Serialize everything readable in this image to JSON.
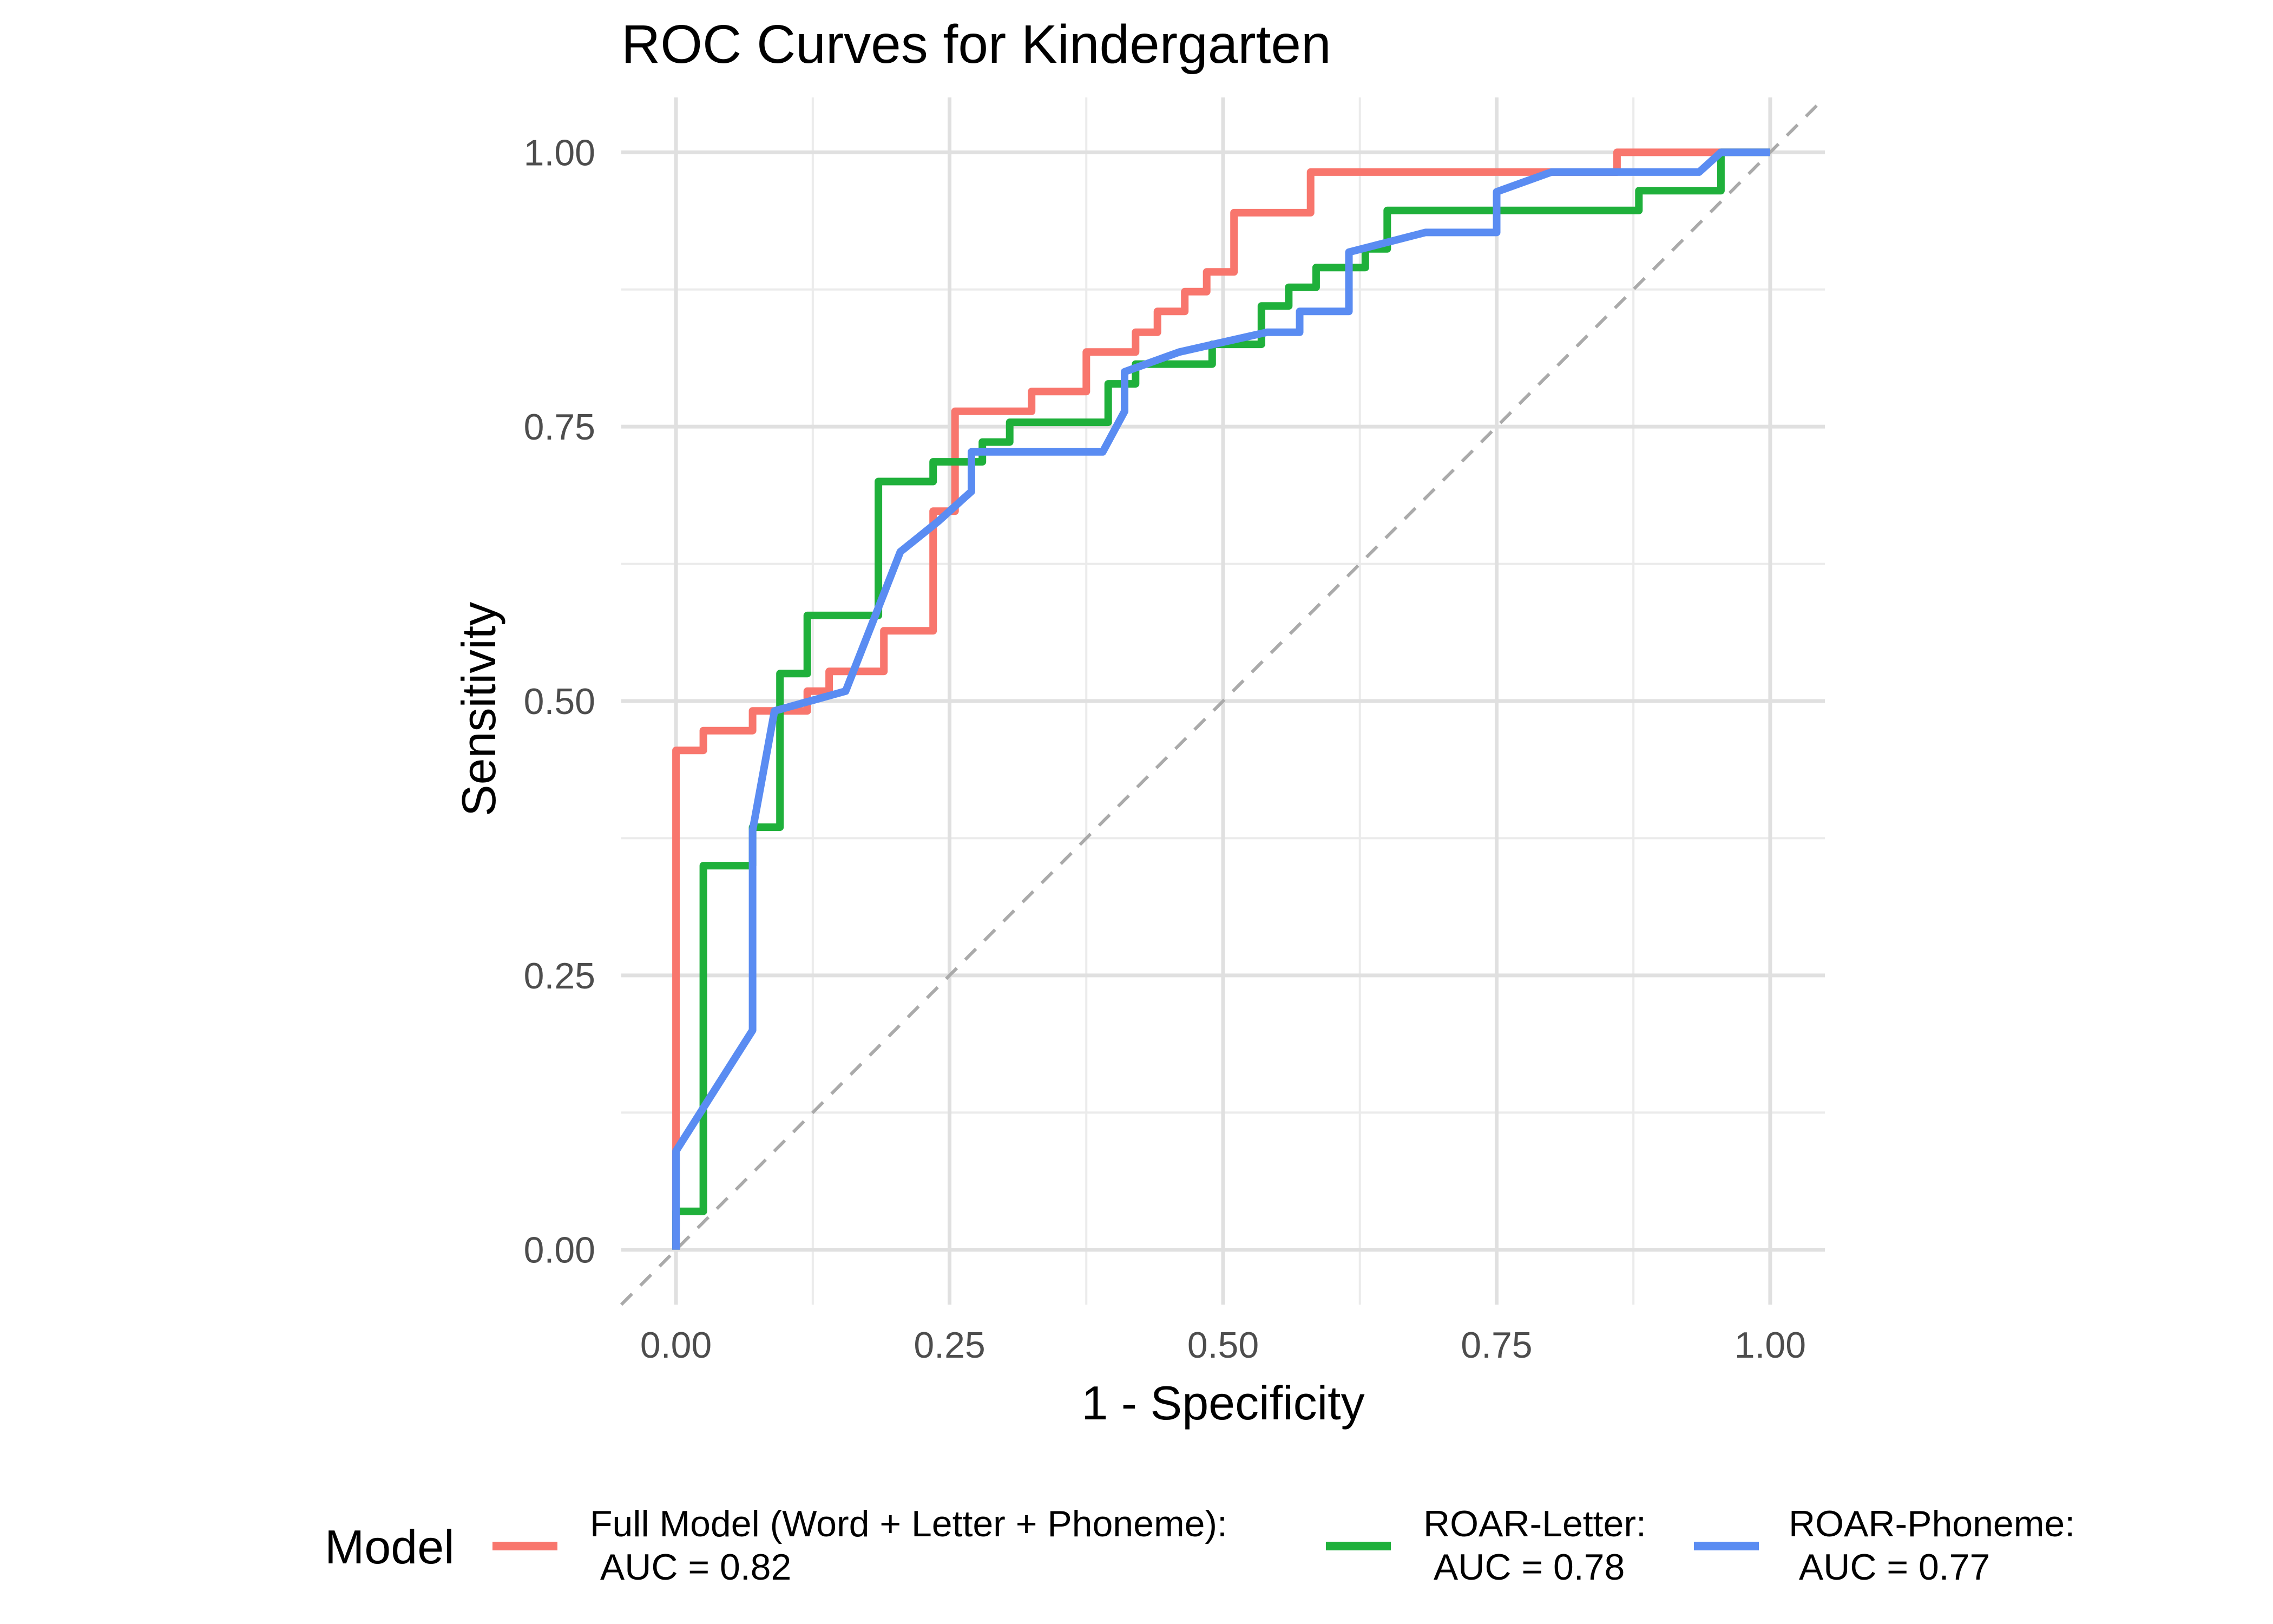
{
  "chart_data": {
    "type": "line",
    "title": "ROC Curves for Kindergarten",
    "xlabel": "1 - Specificity",
    "ylabel": "Sensitivity",
    "xlim": [
      -0.05,
      1.05
    ],
    "ylim": [
      -0.05,
      1.05
    ],
    "xticks": [
      "0.00",
      "0.25",
      "0.50",
      "0.75",
      "1.00"
    ],
    "yticks": [
      "0.00",
      "0.25",
      "0.50",
      "0.75",
      "1.00"
    ],
    "grid": true,
    "legend_position": "bottom",
    "legend_title": "Model",
    "reference_line": {
      "style": "dashed",
      "color": "#aaaaaa",
      "from": [
        -0.05,
        -0.05
      ],
      "to": [
        1.05,
        1.05
      ]
    },
    "series": [
      {
        "name": "Full Model (Word + Letter + Phoneme):\n AUC = 0.82",
        "color": "#F8766D",
        "points": [
          [
            0,
            0
          ],
          [
            0,
            0.09
          ],
          [
            0,
            0.455
          ],
          [
            0.025,
            0.455
          ],
          [
            0.025,
            0.473
          ],
          [
            0.07,
            0.473
          ],
          [
            0.07,
            0.491
          ],
          [
            0.1,
            0.491
          ],
          [
            0.1,
            0.491
          ],
          [
            0.12,
            0.491
          ],
          [
            0.12,
            0.509
          ],
          [
            0.14,
            0.509
          ],
          [
            0.14,
            0.527
          ],
          [
            0.19,
            0.527
          ],
          [
            0.19,
            0.564
          ],
          [
            0.235,
            0.564
          ],
          [
            0.235,
            0.673
          ],
          [
            0.255,
            0.673
          ],
          [
            0.255,
            0.764
          ],
          [
            0.325,
            0.764
          ],
          [
            0.325,
            0.782
          ],
          [
            0.375,
            0.782
          ],
          [
            0.375,
            0.818
          ],
          [
            0.42,
            0.818
          ],
          [
            0.42,
            0.836
          ],
          [
            0.44,
            0.836
          ],
          [
            0.44,
            0.855
          ],
          [
            0.465,
            0.855
          ],
          [
            0.465,
            0.873
          ],
          [
            0.485,
            0.873
          ],
          [
            0.485,
            0.891
          ],
          [
            0.51,
            0.891
          ],
          [
            0.51,
            0.945
          ],
          [
            0.58,
            0.945
          ],
          [
            0.58,
            0.982
          ],
          [
            0.86,
            0.982
          ],
          [
            0.86,
            1.0
          ],
          [
            1.0,
            1.0
          ]
        ]
      },
      {
        "name": "ROAR-Letter:\n AUC = 0.78",
        "color": "#1FB03B",
        "points": [
          [
            0,
            0
          ],
          [
            0,
            0.035
          ],
          [
            0.025,
            0.035
          ],
          [
            0.025,
            0.35
          ],
          [
            0.07,
            0.35
          ],
          [
            0.07,
            0.385
          ],
          [
            0.095,
            0.385
          ],
          [
            0.095,
            0.525
          ],
          [
            0.12,
            0.525
          ],
          [
            0.12,
            0.578
          ],
          [
            0.185,
            0.578
          ],
          [
            0.185,
            0.7
          ],
          [
            0.235,
            0.7
          ],
          [
            0.235,
            0.718
          ],
          [
            0.28,
            0.718
          ],
          [
            0.28,
            0.736
          ],
          [
            0.305,
            0.736
          ],
          [
            0.305,
            0.754
          ],
          [
            0.395,
            0.754
          ],
          [
            0.395,
            0.789
          ],
          [
            0.42,
            0.789
          ],
          [
            0.42,
            0.807
          ],
          [
            0.49,
            0.807
          ],
          [
            0.49,
            0.825
          ],
          [
            0.535,
            0.825
          ],
          [
            0.535,
            0.86
          ],
          [
            0.56,
            0.86
          ],
          [
            0.56,
            0.877
          ],
          [
            0.585,
            0.877
          ],
          [
            0.585,
            0.895
          ],
          [
            0.63,
            0.895
          ],
          [
            0.63,
            0.912
          ],
          [
            0.65,
            0.912
          ],
          [
            0.65,
            0.947
          ],
          [
            0.88,
            0.947
          ],
          [
            0.88,
            0.965
          ],
          [
            0.955,
            0.965
          ],
          [
            0.955,
            1.0
          ],
          [
            1.0,
            1.0
          ]
        ]
      },
      {
        "name": "ROAR-Phoneme:\n AUC = 0.77",
        "color": "#5A8CF2",
        "points": [
          [
            0,
            0
          ],
          [
            0,
            0.09
          ],
          [
            0.07,
            0.2
          ],
          [
            0.07,
            0.382
          ],
          [
            0.09,
            0.491
          ],
          [
            0.155,
            0.509
          ],
          [
            0.205,
            0.636
          ],
          [
            0.24,
            0.664
          ],
          [
            0.27,
            0.691
          ],
          [
            0.27,
            0.727
          ],
          [
            0.39,
            0.727
          ],
          [
            0.41,
            0.764
          ],
          [
            0.41,
            0.8
          ],
          [
            0.46,
            0.818
          ],
          [
            0.54,
            0.836
          ],
          [
            0.57,
            0.836
          ],
          [
            0.57,
            0.855
          ],
          [
            0.615,
            0.855
          ],
          [
            0.615,
            0.909
          ],
          [
            0.685,
            0.927
          ],
          [
            0.75,
            0.927
          ],
          [
            0.75,
            0.964
          ],
          [
            0.8,
            0.982
          ],
          [
            0.935,
            0.982
          ],
          [
            0.955,
            1.0
          ],
          [
            1.0,
            1.0
          ]
        ]
      }
    ]
  }
}
